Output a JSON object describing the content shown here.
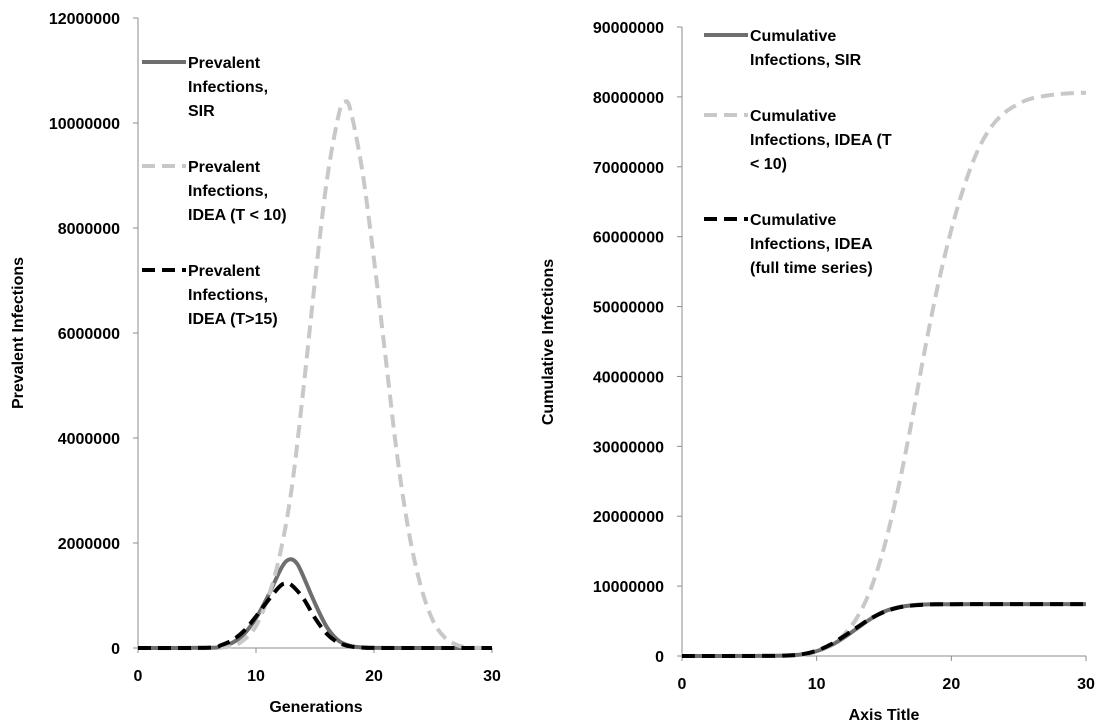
{
  "chart_data": [
    {
      "type": "line",
      "xlabel": "Generations",
      "ylabel": "Prevalent Infections",
      "xlim": [
        0,
        30
      ],
      "ylim": [
        0,
        12000000
      ],
      "x_ticks": [
        "0",
        "10",
        "20",
        "30"
      ],
      "y_ticks": [
        "0",
        "2000000",
        "4000000",
        "6000000",
        "8000000",
        "10000000",
        "12000000"
      ],
      "grid": false,
      "legend_position": "top-left",
      "series": [
        {
          "name": "Prevalent Infections, SIR",
          "legend_lines": [
            "Prevalent",
            "Infections,",
            "SIR"
          ],
          "color": "#6e6e6e",
          "dash": "solid",
          "x": [
            0,
            6,
            7,
            8,
            9,
            10,
            11,
            12,
            12.5,
            13,
            13.5,
            14,
            15,
            16,
            17,
            18,
            19,
            20,
            22,
            25,
            30
          ],
          "y": [
            0,
            5000,
            30000,
            100000,
            270000,
            570000,
            980000,
            1460000,
            1640000,
            1690000,
            1600000,
            1370000,
            850000,
            400000,
            140000,
            40000,
            12000,
            3000,
            0,
            0,
            0
          ]
        },
        {
          "name": "Prevalent Infections, IDEA (T < 10)",
          "legend_lines": [
            "Prevalent",
            "Infections,",
            "IDEA (T < 10)"
          ],
          "color": "#c8c8c8",
          "dash": "dashed",
          "x": [
            0,
            6,
            8,
            9,
            10,
            11,
            12,
            13,
            14,
            15,
            16,
            17,
            17.5,
            18,
            19,
            20,
            21,
            22,
            23,
            24,
            25,
            26,
            27,
            28,
            30
          ],
          "y": [
            0,
            0,
            40000,
            160000,
            420000,
            950000,
            1750000,
            3000000,
            4900000,
            7000000,
            8900000,
            10150000,
            10400000,
            10250000,
            9100000,
            7400000,
            5500000,
            3600000,
            2150000,
            1150000,
            520000,
            200000,
            60000,
            10000,
            0
          ]
        },
        {
          "name": "Prevalent Infections, IDEA (T>15)",
          "legend_lines": [
            "Prevalent",
            "Infections,",
            "IDEA (T>15)"
          ],
          "color": "#000000",
          "dash": "dashed",
          "x": [
            0,
            6,
            7,
            8,
            9,
            10,
            11,
            12,
            12.5,
            13,
            14,
            15,
            16,
            17,
            18,
            19,
            20,
            22,
            25,
            30
          ],
          "y": [
            0,
            5000,
            50000,
            150000,
            330000,
            600000,
            900000,
            1170000,
            1230000,
            1200000,
            950000,
            570000,
            270000,
            100000,
            30000,
            8000,
            2000,
            0,
            0,
            0
          ]
        }
      ]
    },
    {
      "type": "line",
      "xlabel": "Axis Title",
      "ylabel": "Cumulative Infections",
      "xlim": [
        0,
        30
      ],
      "ylim": [
        0,
        90000000
      ],
      "x_ticks": [
        "0",
        "10",
        "20",
        "30"
      ],
      "y_ticks": [
        "0",
        "10000000",
        "20000000",
        "30000000",
        "40000000",
        "50000000",
        "60000000",
        "70000000",
        "80000000",
        "90000000"
      ],
      "grid": false,
      "legend_position": "top-left",
      "series": [
        {
          "name": "Cumulative Infections, SIR",
          "legend_lines": [
            "Cumulative",
            "Infections, SIR"
          ],
          "color": "#6e6e6e",
          "dash": "solid",
          "x": [
            0,
            6,
            8,
            9,
            10,
            11,
            12,
            13,
            14,
            15,
            16,
            17,
            18,
            19,
            20,
            22,
            25,
            30
          ],
          "y": [
            0,
            10000,
            90000,
            250000,
            700000,
            1450000,
            2600000,
            3950000,
            5300000,
            6350000,
            6950000,
            7250000,
            7370000,
            7400000,
            7410000,
            7420000,
            7420000,
            7420000
          ]
        },
        {
          "name": "Cumulative Infections, IDEA (T < 10)",
          "legend_lines": [
            "Cumulative",
            "Infections, IDEA (T",
            "< 10)"
          ],
          "color": "#c8c8c8",
          "dash": "dashed",
          "x": [
            0,
            6,
            8,
            9,
            10,
            11,
            12,
            13,
            14,
            15,
            16,
            17,
            18,
            19,
            20,
            21,
            22,
            23,
            24,
            25,
            26,
            28,
            30
          ],
          "y": [
            0,
            0,
            60000,
            220000,
            640000,
            1500000,
            3000000,
            5500000,
            9500000,
            15500000,
            23500000,
            33000000,
            43500000,
            53000000,
            61000000,
            67500000,
            72500000,
            75800000,
            77800000,
            79000000,
            79800000,
            80400000,
            80600000
          ]
        },
        {
          "name": "Cumulative Infections, IDEA (full time series)",
          "legend_lines": [
            "Cumulative",
            "Infections, IDEA",
            "(full time series)"
          ],
          "color": "#000000",
          "dash": "dashed",
          "x": [
            0,
            6,
            8,
            9,
            10,
            11,
            12,
            13,
            14,
            15,
            16,
            17,
            18,
            19,
            20,
            22,
            25,
            30
          ],
          "y": [
            0,
            10000,
            90000,
            280000,
            750000,
            1600000,
            2800000,
            4100000,
            5350000,
            6300000,
            6900000,
            7200000,
            7350000,
            7400000,
            7410000,
            7420000,
            7420000,
            7420000
          ]
        }
      ]
    }
  ]
}
